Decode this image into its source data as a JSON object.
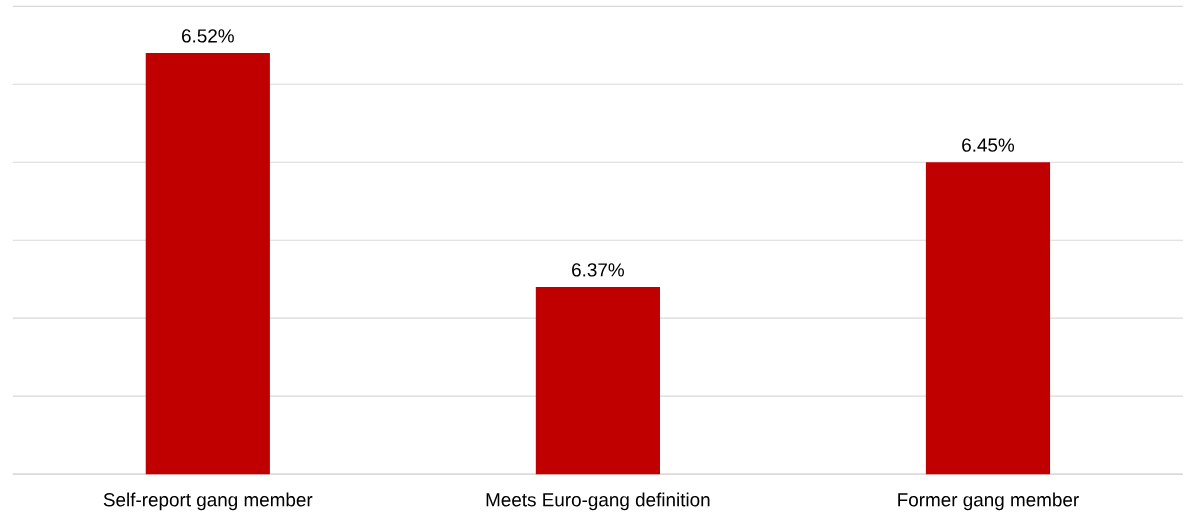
{
  "chart_data": {
    "type": "bar",
    "categories": [
      "Self-report gang member",
      "Meets Euro-gang definition",
      "Former gang member"
    ],
    "values": [
      6.52,
      6.37,
      6.45
    ],
    "value_labels": [
      "6.52%",
      "6.37%",
      "6.45%"
    ],
    "color": "#c00000",
    "ylim": [
      6.25,
      6.55
    ],
    "yticks": [
      {
        "value": 6.25,
        "label": null
      },
      {
        "value": 6.3,
        "label": null
      },
      {
        "value": 6.35,
        "label": null
      },
      {
        "value": 6.4,
        "label": null
      },
      {
        "value": 6.45,
        "label": null
      },
      {
        "value": 6.5,
        "label": null
      },
      {
        "value": 6.55,
        "label": null
      }
    ],
    "tick_labels": "x",
    "grid": "y"
  }
}
